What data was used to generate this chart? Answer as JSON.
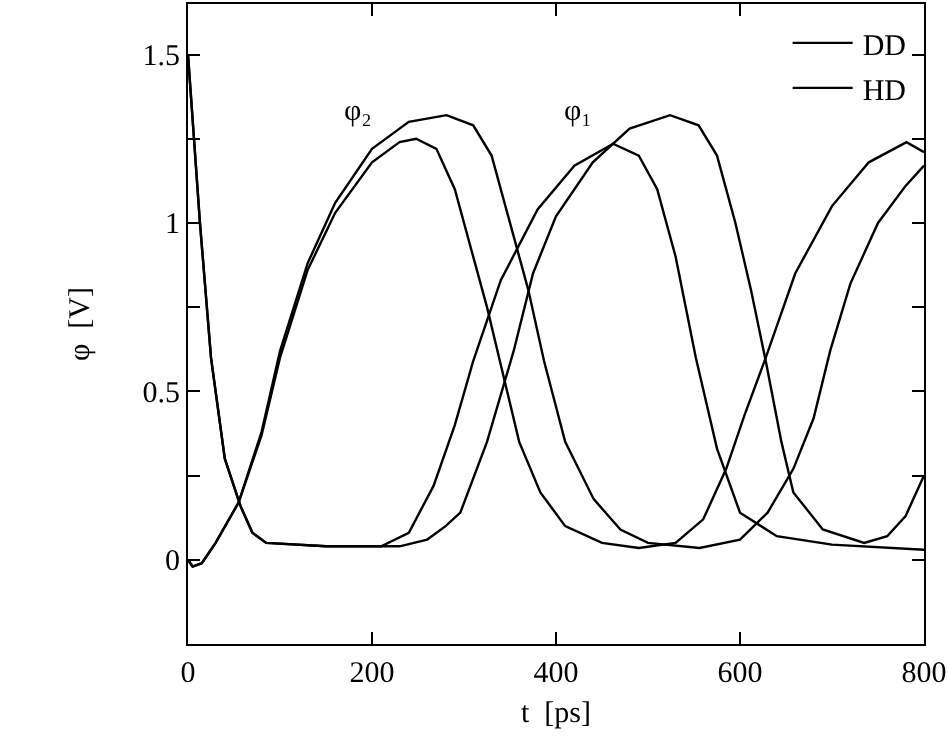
{
  "chart_data": {
    "type": "line",
    "xlabel": "t  [ps]",
    "ylabel": "φ  [V]",
    "xlim": [
      0,
      800
    ],
    "xticks": [
      0,
      200,
      400,
      600,
      800
    ],
    "ylim": [
      -0.25,
      1.65
    ],
    "yticks": [
      0,
      {
        "value": 0.25,
        "label": null
      },
      0.5,
      {
        "value": 0.75,
        "label": null
      },
      1,
      {
        "value": 1.25,
        "label": null
      },
      1.5
    ],
    "legend": "top right",
    "marker": "none",
    "line_style": "solid",
    "annotations": [
      "φ₂",
      "φ₁"
    ],
    "series": [
      {
        "name": "DD",
        "color": "#000000",
        "x": [
          0,
          5,
          15,
          30,
          55,
          80,
          100,
          130,
          160,
          200,
          240,
          281,
          310,
          330,
          350,
          370,
          387,
          410,
          441,
          470,
          500,
          556,
          600,
          630,
          658,
          680,
          698,
          720,
          750,
          780,
          800
        ],
        "values": [
          0,
          -0.02,
          -0.01,
          0.05,
          0.17,
          0.38,
          0.62,
          0.88,
          1.06,
          1.22,
          1.3,
          1.32,
          1.29,
          1.2,
          1.0,
          0.8,
          0.59,
          0.35,
          0.18,
          0.09,
          0.05,
          0.035,
          0.06,
          0.14,
          0.27,
          0.42,
          0.62,
          0.82,
          1.0,
          1.11,
          1.17
        ]
      },
      {
        "name": "HD",
        "color": "#000000",
        "x": [
          0,
          5,
          15,
          30,
          55,
          80,
          100,
          130,
          160,
          200,
          230,
          248,
          270,
          290,
          310,
          325,
          339,
          360,
          383,
          410,
          450,
          490,
          530,
          560,
          585,
          605,
          628,
          660,
          700,
          740,
          781,
          800
        ],
        "values": [
          0,
          -0.02,
          -0.01,
          0.05,
          0.17,
          0.37,
          0.6,
          0.86,
          1.03,
          1.18,
          1.24,
          1.25,
          1.22,
          1.1,
          0.9,
          0.75,
          0.59,
          0.35,
          0.2,
          0.1,
          0.05,
          0.035,
          0.05,
          0.12,
          0.27,
          0.43,
          0.6,
          0.85,
          1.05,
          1.18,
          1.24,
          1.21
        ]
      },
      {
        "color": "#000000",
        "x": [
          0,
          13,
          25,
          40,
          57,
          70,
          85,
          150,
          230,
          260,
          280,
          296,
          325,
          354,
          375,
          400,
          440,
          480,
          524,
          555,
          575,
          595,
          612,
          628,
          645,
          658,
          690,
          735,
          760,
          780,
          800
        ],
        "values": [
          1.5,
          1.0,
          0.6,
          0.3,
          0.16,
          0.08,
          0.05,
          0.04,
          0.04,
          0.06,
          0.1,
          0.14,
          0.35,
          0.62,
          0.85,
          1.02,
          1.18,
          1.28,
          1.32,
          1.29,
          1.2,
          1.0,
          0.8,
          0.59,
          0.35,
          0.2,
          0.09,
          0.05,
          0.07,
          0.13,
          0.25
        ]
      },
      {
        "color": "#000000",
        "x": [
          0,
          13,
          25,
          40,
          57,
          70,
          85,
          150,
          210,
          240,
          267,
          290,
          310,
          340,
          380,
          420,
          462,
          490,
          510,
          530,
          552,
          575,
          600,
          640,
          700,
          800
        ],
        "values": [
          1.5,
          1.0,
          0.6,
          0.3,
          0.16,
          0.08,
          0.05,
          0.04,
          0.04,
          0.08,
          0.22,
          0.4,
          0.59,
          0.83,
          1.04,
          1.17,
          1.235,
          1.2,
          1.1,
          0.9,
          0.6,
          0.33,
          0.14,
          0.07,
          0.045,
          0.03
        ]
      }
    ]
  }
}
